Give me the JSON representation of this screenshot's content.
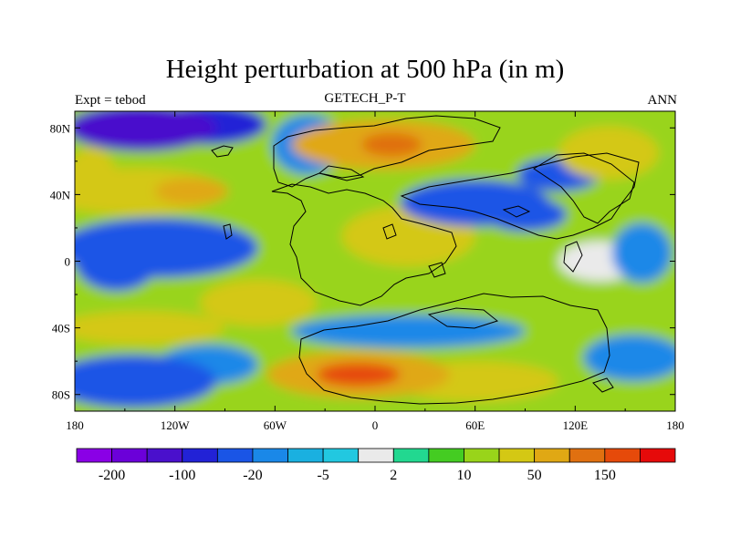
{
  "chart_data": {
    "type": "heatmap",
    "title": "Height perturbation at 500 hPa (in m)",
    "subtitle_left": "Expt = tebod",
    "subtitle_center": "GETECH_P-T",
    "subtitle_right": "ANN",
    "x_ticks": [
      {
        "value": -180,
        "label": "180"
      },
      {
        "value": -120,
        "label": "120W"
      },
      {
        "value": -60,
        "label": "60W"
      },
      {
        "value": 0,
        "label": "0"
      },
      {
        "value": 60,
        "label": "60E"
      },
      {
        "value": 120,
        "label": "120E"
      },
      {
        "value": 180,
        "label": "180"
      }
    ],
    "y_ticks": [
      {
        "value": 80,
        "label": "80N"
      },
      {
        "value": 40,
        "label": "40N"
      },
      {
        "value": 0,
        "label": "0"
      },
      {
        "value": -40,
        "label": "40S"
      },
      {
        "value": -80,
        "label": "80S"
      }
    ],
    "xlim": [
      -180,
      180
    ],
    "ylim": [
      -90,
      90
    ],
    "colorbar": {
      "colors": [
        "#8a00e6",
        "#6b00d9",
        "#4a10cc",
        "#2222d6",
        "#1a55e6",
        "#1a88e8",
        "#1ab0e0",
        "#22c8e0",
        "#eaeaea",
        "#22d890",
        "#44cc22",
        "#99d41a",
        "#d4c814",
        "#e0a814",
        "#e07010",
        "#e64a0a",
        "#e60a0a"
      ],
      "labels": [
        {
          "after_box": 1,
          "text": "-200"
        },
        {
          "after_box": 3,
          "text": "-100"
        },
        {
          "after_box": 5,
          "text": "-20"
        },
        {
          "after_box": 7,
          "text": "-5"
        },
        {
          "after_box": 9,
          "text": "2"
        },
        {
          "after_box": 11,
          "text": "10"
        },
        {
          "after_box": 13,
          "text": "50"
        },
        {
          "after_box": 15,
          "text": "150"
        }
      ]
    },
    "field_features": [
      {
        "lon": -140,
        "lat": 80,
        "value": -120,
        "rlon": 45,
        "rlat": 14
      },
      {
        "lon": -100,
        "lat": 82,
        "value": -60,
        "rlon": 35,
        "rlat": 12
      },
      {
        "lon": -145,
        "lat": 42,
        "value": 35,
        "rlon": 55,
        "rlat": 14
      },
      {
        "lon": -110,
        "lat": 42,
        "value": 70,
        "rlon": 22,
        "rlat": 8
      },
      {
        "lon": -130,
        "lat": 8,
        "value": -30,
        "rlon": 60,
        "rlat": 18
      },
      {
        "lon": -155,
        "lat": 0,
        "value": -22,
        "rlon": 25,
        "rlat": 18
      },
      {
        "lon": -170,
        "lat": 50,
        "value": 20,
        "rlon": 15,
        "rlat": 18
      },
      {
        "lon": -140,
        "lat": -40,
        "value": 30,
        "rlon": 50,
        "rlat": 10
      },
      {
        "lon": -145,
        "lat": -72,
        "value": -30,
        "rlon": 50,
        "rlat": 16
      },
      {
        "lon": -100,
        "lat": -62,
        "value": -15,
        "rlon": 30,
        "rlat": 12
      },
      {
        "lon": -40,
        "lat": 70,
        "value": -18,
        "rlon": 22,
        "rlat": 18
      },
      {
        "lon": 5,
        "lat": 70,
        "value": 50,
        "rlon": 55,
        "rlat": 15
      },
      {
        "lon": 10,
        "lat": 70,
        "value": 120,
        "rlon": 18,
        "rlat": 7
      },
      {
        "lon": -30,
        "lat": 5,
        "value": 15,
        "rlon": 35,
        "rlat": 25
      },
      {
        "lon": 20,
        "lat": 15,
        "value": 20,
        "rlon": 40,
        "rlat": 18
      },
      {
        "lon": 60,
        "lat": 35,
        "value": -30,
        "rlon": 45,
        "rlat": 14
      },
      {
        "lon": 90,
        "lat": 28,
        "value": -40,
        "rlon": 25,
        "rlat": 10
      },
      {
        "lon": 90,
        "lat": 30,
        "value": 2,
        "rlon": 8,
        "rlat": 4
      },
      {
        "lon": 140,
        "lat": 65,
        "value": 40,
        "rlon": 30,
        "rlat": 16
      },
      {
        "lon": 110,
        "lat": 52,
        "value": -22,
        "rlon": 25,
        "rlat": 10
      },
      {
        "lon": 135,
        "lat": 0,
        "value": 0.5,
        "rlon": 25,
        "rlat": 12
      },
      {
        "lon": 160,
        "lat": 5,
        "value": -12,
        "rlon": 18,
        "rlat": 18
      },
      {
        "lon": 20,
        "lat": -42,
        "value": -15,
        "rlon": 70,
        "rlat": 10
      },
      {
        "lon": -10,
        "lat": -68,
        "value": 60,
        "rlon": 55,
        "rlat": 14
      },
      {
        "lon": -10,
        "lat": -68,
        "value": 160,
        "rlon": 25,
        "rlat": 7
      },
      {
        "lon": 60,
        "lat": -72,
        "value": 35,
        "rlon": 50,
        "rlat": 12
      },
      {
        "lon": 155,
        "lat": -58,
        "value": -20,
        "rlon": 30,
        "rlat": 14
      },
      {
        "lon": -70,
        "lat": -25,
        "value": 20,
        "rlon": 35,
        "rlat": 14
      },
      {
        "lon": 0,
        "lat": 0,
        "value": 10,
        "rlon": 360,
        "rlat": 120
      }
    ]
  }
}
